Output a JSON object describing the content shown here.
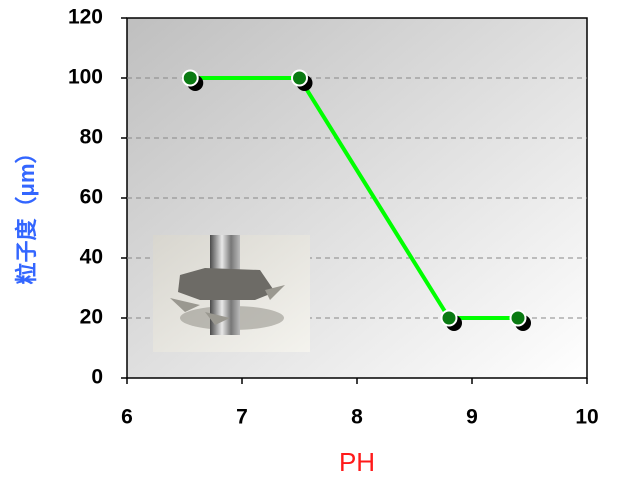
{
  "chart_data": {
    "type": "line",
    "xlabel": "PH",
    "ylabel": "粒子度（μm）",
    "x": [
      6.55,
      7.5,
      8.8,
      9.4
    ],
    "series": [
      {
        "color": "#00ff00",
        "marker_color": "#0a7a12",
        "values": [
          100,
          100,
          20,
          20
        ]
      }
    ],
    "xlim": [
      6,
      10
    ],
    "ylim": [
      0,
      120
    ],
    "xticks": [
      6,
      7,
      8,
      9,
      10
    ],
    "yticks": [
      0,
      20,
      40,
      60,
      80,
      100,
      120
    ],
    "grid": true
  }
}
